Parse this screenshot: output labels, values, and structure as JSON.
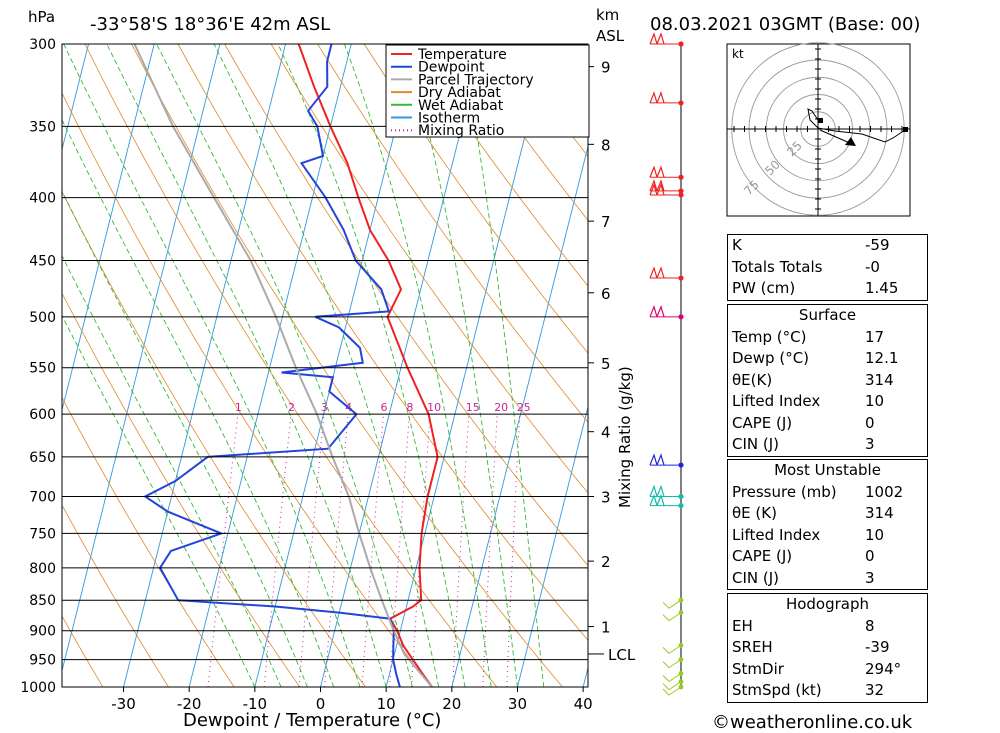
{
  "header": {
    "pressure_unit": "hPa",
    "location": "-33°58'S  18°36'E  42m  ASL",
    "height_unit_1": "km",
    "height_unit_2": "ASL",
    "datetime": "08.03.2021  03GMT  (Base: 00)"
  },
  "chart_data": {
    "type": "line",
    "chart": "skew-T log-P diagram",
    "xlabel": "Dewpoint / Temperature (°C)",
    "ylabel": "hPa",
    "x_ticks": [
      -30,
      -20,
      -10,
      0,
      10,
      20,
      30,
      40
    ],
    "pressure_ticks": [
      300,
      350,
      400,
      450,
      500,
      550,
      600,
      650,
      700,
      750,
      800,
      850,
      900,
      950,
      1000
    ],
    "km_ticks": [
      {
        "label": "1",
        "p": 893
      },
      {
        "label": "2",
        "p": 790
      },
      {
        "label": "3",
        "p": 700
      },
      {
        "label": "4",
        "p": 620
      },
      {
        "label": "5",
        "p": 545
      },
      {
        "label": "6",
        "p": 478
      },
      {
        "label": "7",
        "p": 418
      },
      {
        "label": "8",
        "p": 362
      },
      {
        "label": "9",
        "p": 313
      }
    ],
    "lcl_label": "LCL",
    "lcl_p": 940,
    "mixing_ratio_label": "Mixing Ratio (g/kg)",
    "mixing_ratio_ticks": [
      "1",
      "2",
      "3",
      "4",
      "6",
      "8",
      "10",
      "15",
      "20",
      "25"
    ],
    "mixing_ratio_values": [
      1,
      2,
      3,
      4,
      6,
      8,
      10,
      15,
      20,
      25
    ],
    "legend": [
      "Temperature",
      "Dewpoint",
      "Parcel Trajectory",
      "Dry Adiabat",
      "Wet Adiabat",
      "Isotherm",
      "Mixing Ratio"
    ],
    "series": [
      {
        "name": "Temperature",
        "color": "#ee2222",
        "points": [
          [
            1000,
            17
          ],
          [
            975,
            15
          ],
          [
            950,
            13
          ],
          [
            925,
            11
          ],
          [
            900,
            9.5
          ],
          [
            880,
            8
          ],
          [
            860,
            11
          ],
          [
            850,
            12
          ],
          [
            800,
            10.5
          ],
          [
            750,
            9.5
          ],
          [
            700,
            9
          ],
          [
            650,
            9
          ],
          [
            600,
            6
          ],
          [
            550,
            1
          ],
          [
            500,
            -4
          ],
          [
            475,
            -3
          ],
          [
            450,
            -6
          ],
          [
            425,
            -10
          ],
          [
            400,
            -13
          ],
          [
            375,
            -16
          ],
          [
            350,
            -20
          ],
          [
            325,
            -24
          ],
          [
            300,
            -28
          ]
        ]
      },
      {
        "name": "Dewpoint",
        "color": "#2244dd",
        "points": [
          [
            1000,
            12.1
          ],
          [
            975,
            11
          ],
          [
            950,
            10
          ],
          [
            925,
            9.5
          ],
          [
            900,
            9
          ],
          [
            880,
            8
          ],
          [
            870,
            0
          ],
          [
            860,
            -10
          ],
          [
            850,
            -25
          ],
          [
            800,
            -29
          ],
          [
            775,
            -28
          ],
          [
            750,
            -21
          ],
          [
            720,
            -30
          ],
          [
            700,
            -34
          ],
          [
            680,
            -30
          ],
          [
            650,
            -26
          ],
          [
            640,
            -8
          ],
          [
            600,
            -5
          ],
          [
            575,
            -10
          ],
          [
            560,
            -10
          ],
          [
            555,
            -18
          ],
          [
            545,
            -6
          ],
          [
            530,
            -7
          ],
          [
            510,
            -11
          ],
          [
            500,
            -15
          ],
          [
            495,
            -4
          ],
          [
            475,
            -6
          ],
          [
            450,
            -11
          ],
          [
            425,
            -14
          ],
          [
            400,
            -18
          ],
          [
            375,
            -23
          ],
          [
            370,
            -20
          ],
          [
            350,
            -22
          ],
          [
            340,
            -24
          ],
          [
            325,
            -22
          ],
          [
            310,
            -23
          ],
          [
            300,
            -23
          ]
        ]
      },
      {
        "name": "Parcel Trajectory",
        "color": "#aaaaaa",
        "points": [
          [
            1000,
            17
          ],
          [
            940,
            11.5
          ],
          [
            900,
            9
          ],
          [
            850,
            6
          ],
          [
            800,
            3
          ],
          [
            750,
            0
          ],
          [
            700,
            -3
          ],
          [
            650,
            -7
          ],
          [
            600,
            -11
          ],
          [
            550,
            -16
          ],
          [
            500,
            -21
          ],
          [
            450,
            -27
          ],
          [
            400,
            -35
          ],
          [
            350,
            -44
          ],
          [
            300,
            -53
          ]
        ]
      }
    ],
    "wind_barbs": [
      {
        "p": 300,
        "color": "#ee2222"
      },
      {
        "p": 335,
        "color": "#ee2222"
      },
      {
        "p": 385,
        "color": "#ee2222"
      },
      {
        "p": 395,
        "color": "#ee2222"
      },
      {
        "p": 398,
        "color": "#ee2222"
      },
      {
        "p": 465,
        "color": "#ee2222"
      },
      {
        "p": 500,
        "color": "#dd0077"
      },
      {
        "p": 660,
        "color": "#2222dd"
      },
      {
        "p": 700,
        "color": "#11bbaa"
      },
      {
        "p": 712,
        "color": "#11bbaa"
      }
    ],
    "hodograph": {
      "unit": "kt",
      "ring_labels": [
        "25",
        "50",
        "75"
      ]
    }
  },
  "indices": [
    {
      "label": "K",
      "value": "-59"
    },
    {
      "label": "Totals Totals",
      "value": "-0"
    },
    {
      "label": "PW (cm)",
      "value": "1.45"
    }
  ],
  "surface": {
    "title": "Surface",
    "rows": [
      {
        "label": "Temp (°C)",
        "value": "17"
      },
      {
        "label": "Dewp (°C)",
        "value": "12.1"
      },
      {
        "label": "θE(K)",
        "value": "314"
      },
      {
        "label": "Lifted Index",
        "value": "10"
      },
      {
        "label": "CAPE (J)",
        "value": "0"
      },
      {
        "label": "CIN (J)",
        "value": "3"
      }
    ]
  },
  "most_unstable": {
    "title": "Most Unstable",
    "rows": [
      {
        "label": "Pressure (mb)",
        "value": "1002"
      },
      {
        "label": "θE (K)",
        "value": "314"
      },
      {
        "label": "Lifted Index",
        "value": "10"
      },
      {
        "label": "CAPE (J)",
        "value": "0"
      },
      {
        "label": "CIN (J)",
        "value": "3"
      }
    ]
  },
  "hodograph_table": {
    "title": "Hodograph",
    "rows": [
      {
        "label": "EH",
        "value": "8"
      },
      {
        "label": "SREH",
        "value": "-39"
      },
      {
        "label": "StmDir",
        "value": "294°"
      },
      {
        "label": "StmSpd (kt)",
        "value": "32"
      }
    ]
  },
  "footer": {
    "copyright": "©weatheronline.co.uk"
  }
}
